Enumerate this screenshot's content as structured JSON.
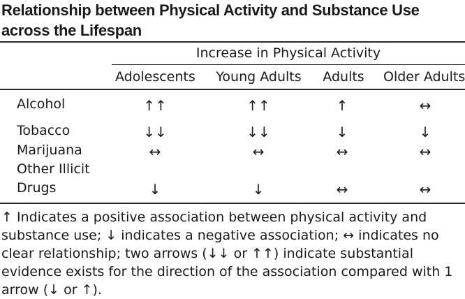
{
  "title": "Relationship between Physical Activity and Substance Use across the Lifespan",
  "group_header": "Increase in Physical Activity",
  "columns": [
    "Adolescents",
    "Young Adults",
    "Adults",
    "Older Adults"
  ],
  "rows": [
    {
      "label": "Alcohol",
      "cells": [
        "↑↑",
        "↑↑",
        "↑",
        "↔"
      ]
    },
    {
      "label": "Tobacco",
      "cells": [
        "↓↓",
        "↓↓",
        "↓",
        "↓"
      ]
    },
    {
      "label": "Marijuana",
      "cells": [
        "↔",
        "↔",
        "↔",
        "↔"
      ]
    },
    {
      "label": "Other Illicit",
      "cells": [
        "",
        "",
        "",
        ""
      ]
    },
    {
      "label": "Drugs",
      "cells": [
        "↓",
        "↓",
        "↔",
        "↔"
      ]
    }
  ],
  "footnote": "↑ Indicates a positive association between physical activity and substance use; ↓ indicates a negative association; ↔ indicates no clear relationship; two arrows (↓↓ or ↑↑) indicate substantial evidence exists for the direction of the association compared with 1 arrow (↓ or ↑)."
}
